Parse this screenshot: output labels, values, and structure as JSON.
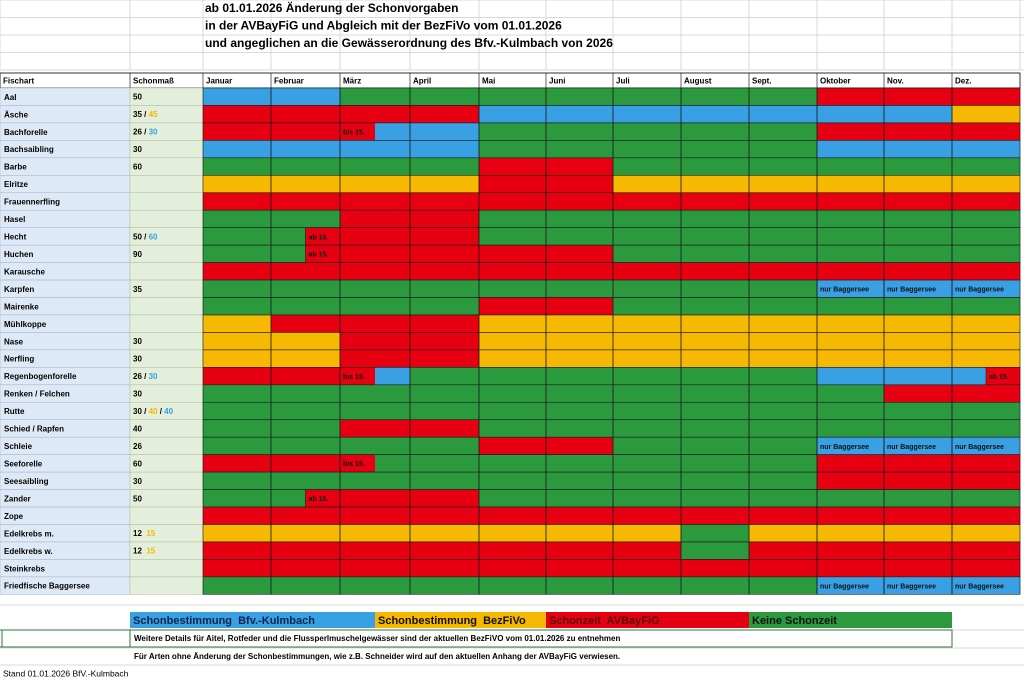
{
  "title_lines": [
    "ab 01.01.2026 Änderung der Schonvorgaben",
    "in der AVBayFiG und Abgleich mit der BezFiVo vom 01.01.2026",
    "und angeglichen an die Gewässerordnung des Bfv.-Kulmbach von 2026"
  ],
  "table": {
    "headers": [
      "Fischart",
      "Schonmaß"
    ],
    "months": [
      "Januar",
      "Februar",
      "März",
      "April",
      "Mai",
      "Juni",
      "Juli",
      "August",
      "Sept.",
      "Oktober",
      "Nov.",
      "Dez."
    ],
    "rows": [
      {
        "name": "Aal",
        "schonmass": [
          {
            "text": "50"
          }
        ],
        "periods": "BBBBGGGGGGGGGGGGGGRRRRRR"
      },
      {
        "name": "Äsche",
        "schonmass": [
          {
            "text": "35 / "
          },
          {
            "text": "45",
            "code": "Y"
          }
        ],
        "periods": "RRRRRRRRBBBBBBBBBBBBBBYY"
      },
      {
        "name": "Bachforelle",
        "schonmass": [
          {
            "text": "26 / "
          },
          {
            "text": "30",
            "code": "B"
          }
        ],
        "periods": "RRRRRBBBGGGGGGGGGGRRRRRR",
        "notes": [
          {
            "half": 4,
            "text": "bis 15."
          }
        ]
      },
      {
        "name": "Bachsaibling",
        "schonmass": [
          {
            "text": "30"
          }
        ],
        "periods": "BBBBBBBBGGGGGGGGGGBBBBBB"
      },
      {
        "name": "Barbe",
        "schonmass": [
          {
            "text": "60"
          }
        ],
        "periods": "GGGGGGGGRRRRGGGGGGGGGGGG"
      },
      {
        "name": "Elritze",
        "periods": "YYYYYYYYRRRRYYYYYYYYYYYY"
      },
      {
        "name": "Frauennerfling",
        "periods": "RRRRRRRRRRRRRRRRRRRRRRRR"
      },
      {
        "name": "Hasel",
        "periods": "GGGGRRRRGGGGGGGGGGGGGGGG"
      },
      {
        "name": "Hecht",
        "schonmass": [
          {
            "text": "50 / "
          },
          {
            "text": "60",
            "code": "B"
          }
        ],
        "periods": "GGGRRRRRGGGGGGGGGGGGGGGG",
        "notes": [
          {
            "half": 3,
            "text": "ab 15."
          }
        ]
      },
      {
        "name": "Huchen",
        "schonmass": [
          {
            "text": "90"
          }
        ],
        "periods": "GGGRRRRRRRRRGGGGGGGGGGGG",
        "notes": [
          {
            "half": 3,
            "text": "ab 15."
          }
        ]
      },
      {
        "name": "Karausche",
        "periods": "RRRRRRRRRRRRRRRRRRRRRRRR"
      },
      {
        "name": "Karpfen",
        "schonmass": [
          {
            "text": "35"
          }
        ],
        "periods": "GGGGGGGGGGGGGGGGGGBBBBBB",
        "notes": [
          {
            "half": 18,
            "text": "nur Baggersee"
          },
          {
            "half": 20,
            "text": "nur Baggersee"
          },
          {
            "half": 22,
            "text": "nur Baggersee"
          }
        ]
      },
      {
        "name": "Mairenke",
        "periods": "GGGGGGGGRRRRGGGGGGGGGGGG"
      },
      {
        "name": "Mühlkoppe",
        "periods": "YYRRRRRRYYYYYYYYYYYYYYYY"
      },
      {
        "name": "Nase",
        "schonmass": [
          {
            "text": "30"
          }
        ],
        "periods": "YYYYRRRRYYYYYYYYYYYYYYYY"
      },
      {
        "name": "Nerfling",
        "schonmass": [
          {
            "text": "30"
          }
        ],
        "periods": "YYYYRRRRYYYYYYYYYYYYYYYY"
      },
      {
        "name": "Regenbogenforelle",
        "schonmass": [
          {
            "text": "26 / "
          },
          {
            "text": "30",
            "code": "B"
          }
        ],
        "periods": "RRRRRBGGGGGGGGGGGGBBBBBR",
        "notes": [
          {
            "half": 4,
            "text": "bis 15."
          },
          {
            "half": 23,
            "text": "ab 15."
          }
        ]
      },
      {
        "name": "Renken / Felchen",
        "schonmass": [
          {
            "text": "30"
          }
        ],
        "periods": "GGGGGGGGGGGGGGGGGGGGRRRR"
      },
      {
        "name": "Rutte",
        "schonmass": [
          {
            "text": "30 / "
          },
          {
            "text": "40",
            "code": "Y"
          },
          {
            "text": " / "
          },
          {
            "text": "40",
            "code": "B"
          }
        ],
        "periods": "GGGGGGGGGGGGGGGGGGGGGGGG"
      },
      {
        "name": "Schied / Rapfen",
        "schonmass": [
          {
            "text": "40"
          }
        ],
        "periods": "GGGGRRRRGGGGGGGGGGGGGGGG"
      },
      {
        "name": "Schleie",
        "schonmass": [
          {
            "text": "26"
          }
        ],
        "periods": "GGGGGGGGRRRRGGGGGGBBBBBB",
        "notes": [
          {
            "half": 18,
            "text": "nur Baggersee"
          },
          {
            "half": 20,
            "text": "nur Baggersee"
          },
          {
            "half": 22,
            "text": "nur Baggersee"
          }
        ]
      },
      {
        "name": "Seeforelle",
        "schonmass": [
          {
            "text": "60"
          }
        ],
        "periods": "RRRRRGGGGGGGGGGGGGRRRRRR",
        "notes": [
          {
            "half": 4,
            "text": "bis 15."
          }
        ]
      },
      {
        "name": "Seesaibling",
        "schonmass": [
          {
            "text": "30"
          }
        ],
        "periods": "GGGGGGGGGGGGGGGGGGRRRRRR"
      },
      {
        "name": "Zander",
        "schonmass": [
          {
            "text": "50"
          }
        ],
        "periods": "GGGRRRRRGGGGGGGGGGGGGGGG",
        "notes": [
          {
            "half": 3,
            "text": "ab 15."
          }
        ]
      },
      {
        "name": "Zope",
        "periods": "RRRRRRRRRRRRRRRRRRRRRRRR"
      },
      {
        "name": "Edelkrebs m.",
        "schonmass": [
          {
            "text": "12  "
          },
          {
            "text": "15",
            "code": "Y"
          }
        ],
        "periods": "YYYYYYYYYYYYYYGGYYYYYYYY"
      },
      {
        "name": "Edelkrebs w.",
        "schonmass": [
          {
            "text": "12  "
          },
          {
            "text": "15",
            "code": "Y"
          }
        ],
        "periods": "RRRRRRRRRRRRRRGGRRRRRRRR"
      },
      {
        "name": "Steinkrebs",
        "periods": "RRRRRRRRRRRRRRRRRRRRRRRR"
      },
      {
        "name": "Friedfische Baggersee",
        "periods": "GGGGGGGGGGGGGGGGGGBBBBBB",
        "notes": [
          {
            "half": 18,
            "text": "nur Baggersee"
          },
          {
            "half": 20,
            "text": "nur Baggersee"
          },
          {
            "half": 22,
            "text": "nur Baggersee"
          }
        ]
      }
    ]
  },
  "legend": [
    {
      "code": "B",
      "color": "#39a0e3",
      "label": "Schonbestimmung  Bfv.-Kulmbach"
    },
    {
      "code": "Y",
      "color": "#f6b800",
      "label": "Schonbestimmung  BezFiVo"
    },
    {
      "code": "R",
      "color": "#e60012",
      "label": "Schonzeit  AVBayFiG"
    },
    {
      "code": "G",
      "color": "#2b9a3e",
      "label": "Keine Schonzeit"
    }
  ],
  "notes": [
    "Weitere Details für Aitel, Rotfeder und die Flussperlmuschelgewässer sind der aktuellen BezFiVO vom 01.01.2026 zu entnehmen",
    "Für Arten ohne Änderung der Schonbestimmungen, wie z.B. Schneider wird auf den aktuellen Anhang der AVBayFiG verwiesen."
  ],
  "footer": "Stand 01.01.2026 BfV.-Kulmbach"
}
